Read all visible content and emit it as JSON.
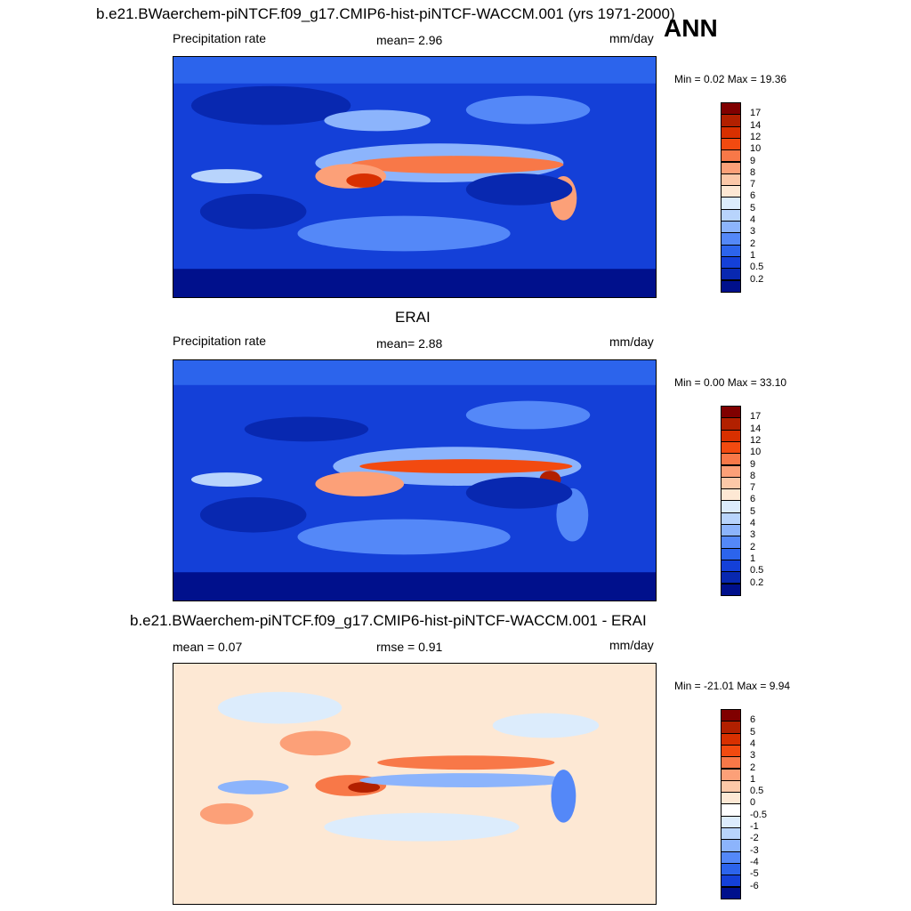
{
  "top_title": "b.e21.BWaerchem-piNTCF.f09_g17.CMIP6-hist-piNTCF-WACCM.001 (yrs 1971-2000)",
  "season": "ANN",
  "panels": [
    {
      "heading": "",
      "left_label": "Precipitation rate",
      "center_label": "mean=   2.96",
      "units": "mm/day",
      "minmax": "Min =   0.02 Max =  19.36",
      "type": "abs"
    },
    {
      "heading": "ERAI",
      "left_label": "Precipitation rate",
      "center_label": "mean=   2.88",
      "units": "mm/day",
      "minmax": "Min =   0.00 Max =  33.10",
      "type": "abs"
    },
    {
      "heading": "b.e21.BWaerchem-piNTCF.f09_g17.CMIP6-hist-piNTCF-WACCM.001 - ERAI",
      "left_label": "mean =   0.07",
      "center_label": "rmse =   0.91",
      "units": "mm/day",
      "minmax": "Min = -21.01 Max =   9.94",
      "type": "diff"
    }
  ],
  "colorbars": {
    "abs": {
      "labels": [
        "17",
        "14",
        "12",
        "10",
        "9",
        "8",
        "7",
        "6",
        "5",
        "4",
        "3",
        "2",
        "1",
        "0.5",
        "0.2"
      ],
      "colors": [
        "#800000",
        "#b22000",
        "#d83000",
        "#f24a10",
        "#f87848",
        "#fca078",
        "#fcc8a8",
        "#fde8d4",
        "#dcecfc",
        "#b8d4fc",
        "#8cb4fc",
        "#5488f8",
        "#2c64ec",
        "#1440d8",
        "#0828b0",
        "#00108c"
      ]
    },
    "diff": {
      "labels": [
        "6",
        "5",
        "4",
        "3",
        "2",
        "1",
        "0.5",
        "0",
        "-0.5",
        "-1",
        "-2",
        "-3",
        "-4",
        "-5",
        "-6"
      ],
      "colors": [
        "#800000",
        "#b22000",
        "#d83000",
        "#f24a10",
        "#f87848",
        "#fca078",
        "#fcc8a8",
        "#fde8d4",
        "#ffffff",
        "#dcecfc",
        "#b8d4fc",
        "#8cb4fc",
        "#5488f8",
        "#2c64ec",
        "#1440d8",
        "#00108c"
      ]
    }
  }
}
